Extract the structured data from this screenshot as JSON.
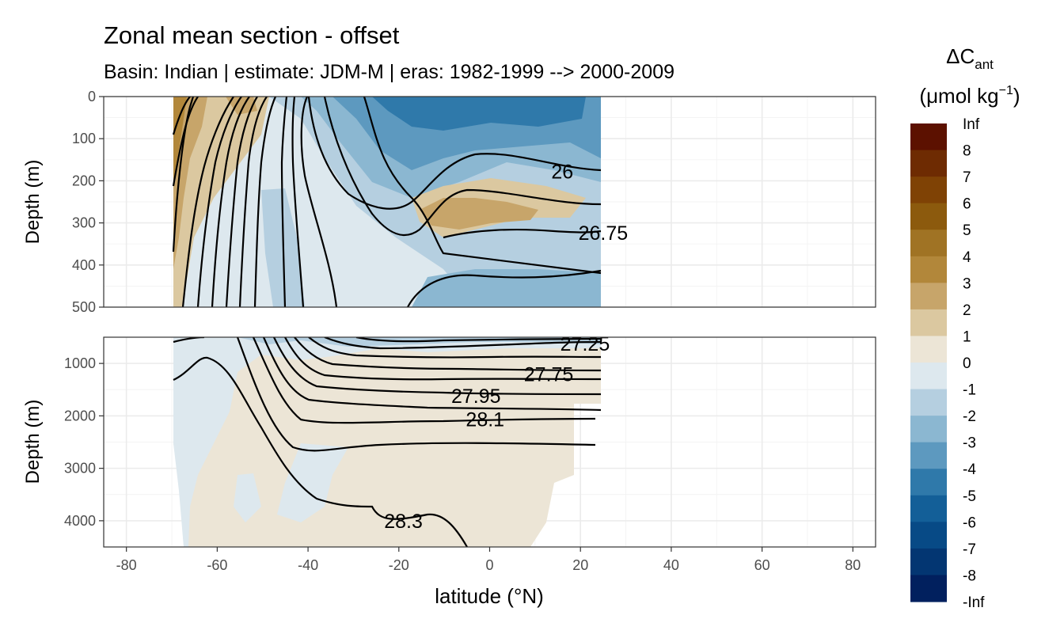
{
  "title": "Zonal mean section - offset",
  "subtitle": "Basin: Indian | estimate: JDM-M | eras: 1982-1999 --> 2000-2009",
  "chart_data": {
    "type": "heatmap",
    "basin": "Indian",
    "estimate": "JDM-M",
    "eras": "1982-1999 --> 2000-2009",
    "xlabel": "latitude (°N)",
    "xlim": [
      -85,
      85
    ],
    "x_ticks": [
      "-80",
      "-60",
      "-40",
      "-20",
      "0",
      "20",
      "40",
      "60",
      "80"
    ],
    "x_tick_values": [
      -80,
      -60,
      -40,
      -20,
      0,
      20,
      40,
      60,
      80
    ],
    "data_lat_range": [
      -70,
      24.5
    ],
    "panels": [
      {
        "name": "upper",
        "ylabel": "Depth (m)",
        "ylim": [
          0,
          500
        ],
        "y_ticks": [
          "0",
          "100",
          "200",
          "300",
          "400",
          "500"
        ],
        "y_tick_values": [
          0,
          100,
          200,
          300,
          400,
          500
        ],
        "contour_labels": [
          {
            "text": "26",
            "lat": 16,
            "depth": 178
          },
          {
            "text": "26.75",
            "lat": 25,
            "depth": 323
          }
        ]
      },
      {
        "name": "lower",
        "ylabel": "Depth (m)",
        "ylim": [
          500,
          4500
        ],
        "y_ticks": [
          "1000",
          "2000",
          "3000",
          "4000"
        ],
        "y_tick_values": [
          1000,
          2000,
          3000,
          4000
        ],
        "contour_labels": [
          {
            "text": "27.25",
            "lat": 21,
            "depth": 620
          },
          {
            "text": "27.75",
            "lat": 13,
            "depth": 1200
          },
          {
            "text": "27.95",
            "lat": -3,
            "depth": 1620
          },
          {
            "text": "28.1",
            "lat": -1,
            "depth": 2060
          },
          {
            "text": "28.3",
            "lat": -19,
            "depth": 4000
          }
        ]
      }
    ],
    "legend": {
      "title_main": "ΔC",
      "title_sub": "ant",
      "unit_prefix": "(μmol kg",
      "unit_sup": "−1",
      "unit_suffix": ")",
      "breaks": [
        "Inf",
        "8",
        "7",
        "6",
        "5",
        "4",
        "3",
        "2",
        "1",
        "0",
        "-1",
        "-2",
        "-3",
        "-4",
        "-5",
        "-6",
        "-7",
        "-8",
        "-Inf"
      ],
      "colors": [
        "#5c1100",
        "#6e2b02",
        "#7f4205",
        "#8c5a0d",
        "#a07324",
        "#b2873a",
        "#c7a56a",
        "#dbc8a0",
        "#ece5d6",
        "#dde8ee",
        "#b5cfe0",
        "#8bb7d1",
        "#5d99bf",
        "#2f79aa",
        "#135f98",
        "#074a86",
        "#033672",
        "#01205e"
      ]
    }
  }
}
